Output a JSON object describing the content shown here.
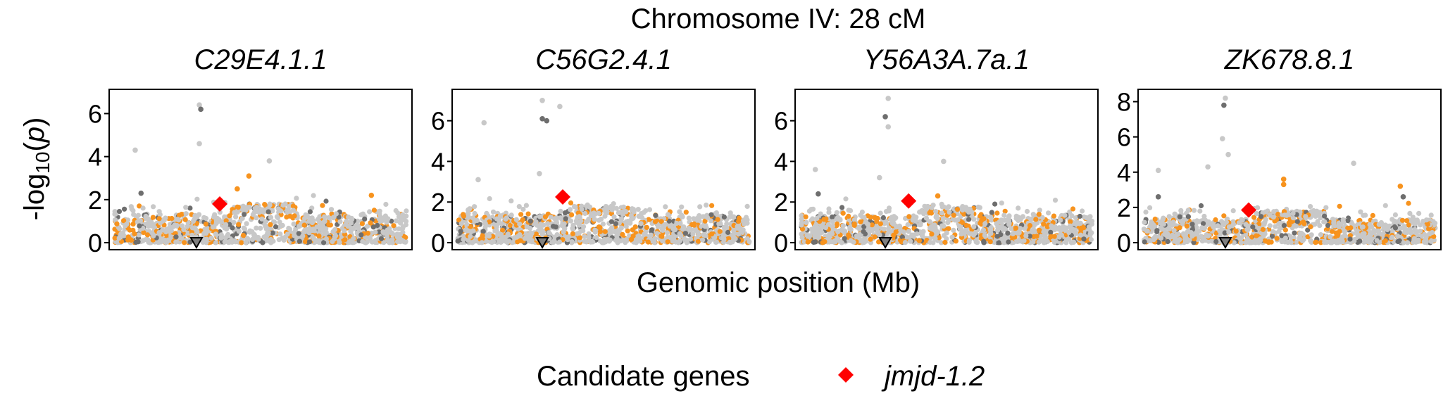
{
  "figure": {
    "title": "Chromosome IV: 28 cM",
    "xlabel": "Genomic position (Mb)",
    "ylabel_main": "-log",
    "ylabel_sub": "10",
    "ylabel_open": "(",
    "ylabel_var": "p",
    "ylabel_close": ")"
  },
  "legend": {
    "title": "Candidate genes",
    "item": "jmjd-1.2",
    "item_color": "#ff0000"
  },
  "colors": {
    "background_point": "#c8c8c8",
    "dark_point": "#6e6e6e",
    "orange_point": "#f7931e",
    "candidate": "#ff0000",
    "peak_marker_fill": "#808080"
  },
  "chart_data": [
    {
      "type": "scatter",
      "title": "C29E4.1.1",
      "ylim": [
        0,
        6.8
      ],
      "yticks": [
        0,
        2,
        4,
        6
      ],
      "candidate": {
        "name": "jmjd-1.2",
        "x": 0.36,
        "y": 1.8
      },
      "peak_marker": {
        "x": 0.28,
        "y": 0
      },
      "notable_points": [
        {
          "x": 0.29,
          "y": 6.4,
          "color": "gray"
        },
        {
          "x": 0.295,
          "y": 6.2,
          "color": "dark"
        },
        {
          "x": 0.29,
          "y": 4.6,
          "color": "gray"
        },
        {
          "x": 0.07,
          "y": 4.3,
          "color": "gray"
        },
        {
          "x": 0.53,
          "y": 3.8,
          "color": "gray"
        },
        {
          "x": 0.46,
          "y": 3.1,
          "color": "orange"
        },
        {
          "x": 0.09,
          "y": 2.3,
          "color": "dark"
        },
        {
          "x": 0.42,
          "y": 2.5,
          "color": "orange"
        },
        {
          "x": 0.88,
          "y": 2.2,
          "color": "orange"
        }
      ]
    },
    {
      "type": "scatter",
      "title": "C56G2.4.1",
      "ylim": [
        0,
        7.2
      ],
      "yticks": [
        0,
        2,
        4,
        6
      ],
      "candidate": {
        "name": "jmjd-1.2",
        "x": 0.36,
        "y": 2.25
      },
      "peak_marker": {
        "x": 0.29,
        "y": 0
      },
      "notable_points": [
        {
          "x": 0.29,
          "y": 7.0,
          "color": "gray"
        },
        {
          "x": 0.29,
          "y": 6.1,
          "color": "dark"
        },
        {
          "x": 0.305,
          "y": 6.0,
          "color": "dark"
        },
        {
          "x": 0.09,
          "y": 5.9,
          "color": "gray"
        },
        {
          "x": 0.35,
          "y": 6.7,
          "color": "gray"
        },
        {
          "x": 0.28,
          "y": 3.4,
          "color": "gray"
        },
        {
          "x": 0.07,
          "y": 3.1,
          "color": "gray"
        }
      ]
    },
    {
      "type": "scatter",
      "title": "Y56A3A.7a.1",
      "ylim": [
        0,
        7.2
      ],
      "yticks": [
        0,
        2,
        4,
        6
      ],
      "candidate": {
        "name": "jmjd-1.2",
        "x": 0.37,
        "y": 2.05
      },
      "peak_marker": {
        "x": 0.29,
        "y": 0
      },
      "notable_points": [
        {
          "x": 0.3,
          "y": 7.1,
          "color": "gray"
        },
        {
          "x": 0.29,
          "y": 6.2,
          "color": "dark"
        },
        {
          "x": 0.3,
          "y": 5.7,
          "color": "gray"
        },
        {
          "x": 0.05,
          "y": 3.6,
          "color": "gray"
        },
        {
          "x": 0.27,
          "y": 3.2,
          "color": "gray"
        },
        {
          "x": 0.49,
          "y": 4.0,
          "color": "gray"
        },
        {
          "x": 0.06,
          "y": 2.4,
          "color": "dark"
        },
        {
          "x": 0.47,
          "y": 2.3,
          "color": "orange"
        }
      ]
    },
    {
      "type": "scatter",
      "title": "ZK678.8.1",
      "ylim": [
        0,
        8.3
      ],
      "yticks": [
        0,
        2,
        4,
        6,
        8
      ],
      "candidate": {
        "name": "jmjd-1.2",
        "x": 0.36,
        "y": 1.85
      },
      "peak_marker": {
        "x": 0.28,
        "y": 0
      },
      "notable_points": [
        {
          "x": 0.28,
          "y": 8.2,
          "color": "gray"
        },
        {
          "x": 0.275,
          "y": 7.8,
          "color": "dark"
        },
        {
          "x": 0.27,
          "y": 5.9,
          "color": "gray"
        },
        {
          "x": 0.29,
          "y": 5.0,
          "color": "gray"
        },
        {
          "x": 0.22,
          "y": 4.3,
          "color": "gray"
        },
        {
          "x": 0.05,
          "y": 4.1,
          "color": "gray"
        },
        {
          "x": 0.72,
          "y": 4.5,
          "color": "gray"
        },
        {
          "x": 0.48,
          "y": 3.6,
          "color": "orange"
        },
        {
          "x": 0.48,
          "y": 3.3,
          "color": "orange"
        },
        {
          "x": 0.88,
          "y": 3.2,
          "color": "orange"
        },
        {
          "x": 0.89,
          "y": 2.6,
          "color": "dark"
        },
        {
          "x": 0.05,
          "y": 2.6,
          "color": "dark"
        }
      ]
    }
  ]
}
